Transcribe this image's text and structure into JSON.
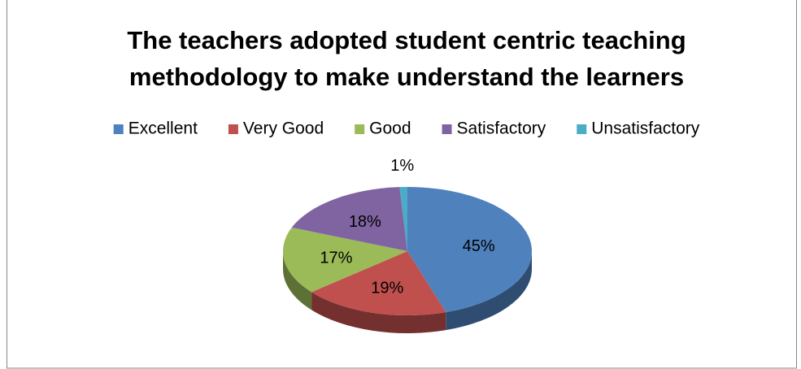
{
  "chart_data": {
    "type": "pie",
    "title": [
      "The teachers adopted student centric teaching",
      "methodology to make understand the learners"
    ],
    "categories": [
      "Excellent",
      "Very Good",
      "Good",
      "Satisfactory",
      "Unsatisfactory"
    ],
    "values": [
      45,
      19,
      17,
      18,
      1
    ],
    "value_labels": [
      "45%",
      "19%",
      "17%",
      "18%",
      "1%"
    ],
    "colors": [
      "#4f81bd",
      "#c0504d",
      "#9bbb59",
      "#8064a2",
      "#4bacc6"
    ],
    "legend": "top"
  }
}
